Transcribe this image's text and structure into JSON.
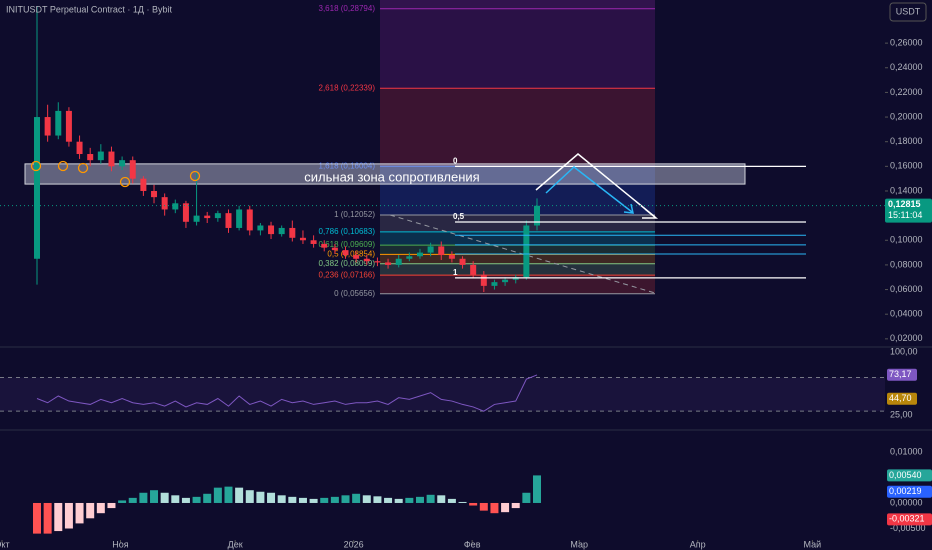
{
  "header": {
    "symbol": "INITUSDT Perpetual Contract · 1Д · Bybit",
    "currency_button": "USDT"
  },
  "chart_data": {
    "type": "candlestick",
    "ylim": [
      0.015,
      0.295
    ],
    "yticks": [
      {
        "value": 0.26,
        "label": "0,26000"
      },
      {
        "value": 0.24,
        "label": "0,24000"
      },
      {
        "value": 0.22,
        "label": "0,22000"
      },
      {
        "value": 0.2,
        "label": "0,20000"
      },
      {
        "value": 0.18,
        "label": "0,18000"
      },
      {
        "value": 0.16,
        "label": "0,16000"
      },
      {
        "value": 0.14,
        "label": "0,14000"
      },
      {
        "value": 0.12,
        "label": "0,12000"
      },
      {
        "value": 0.1,
        "label": "0,10000"
      },
      {
        "value": 0.08,
        "label": "0,08000"
      },
      {
        "value": 0.06,
        "label": "0,06000"
      },
      {
        "value": 0.04,
        "label": "0,04000"
      },
      {
        "value": 0.02,
        "label": "0,02000"
      }
    ],
    "xlim": [
      0,
      231
    ],
    "xticks": [
      {
        "value": 0,
        "label": "Окт"
      },
      {
        "value": 31,
        "label": "Ноя"
      },
      {
        "value": 61,
        "label": "Дек"
      },
      {
        "value": 92,
        "label": "2026"
      },
      {
        "value": 123,
        "label": "Фев"
      },
      {
        "value": 151,
        "label": "Мар"
      },
      {
        "value": 182,
        "label": "Апр"
      },
      {
        "value": 212,
        "label": "Май"
      }
    ],
    "up_color": "#089981",
    "down_color": "#f23645",
    "open": [
      0.085,
      0.2,
      0.185,
      0.205,
      0.18,
      0.17,
      0.165,
      0.172,
      0.16,
      0.165,
      0.15,
      0.14,
      0.135,
      0.125,
      0.13,
      0.115,
      0.12,
      0.118,
      0.122,
      0.11,
      0.125,
      0.108,
      0.112,
      0.105,
      0.11,
      0.102,
      0.1,
      0.097,
      0.094,
      0.092,
      0.088,
      0.085,
      0.083,
      0.082,
      0.08,
      0.085,
      0.087,
      0.09,
      0.095,
      0.088,
      0.085,
      0.08,
      0.072,
      0.063,
      0.066,
      0.068,
      0.07,
      0.112
    ],
    "high": [
      0.29,
      0.21,
      0.212,
      0.208,
      0.185,
      0.175,
      0.178,
      0.176,
      0.168,
      0.168,
      0.152,
      0.145,
      0.138,
      0.133,
      0.132,
      0.155,
      0.123,
      0.124,
      0.125,
      0.128,
      0.128,
      0.114,
      0.115,
      0.112,
      0.116,
      0.108,
      0.104,
      0.1,
      0.097,
      0.095,
      0.091,
      0.088,
      0.086,
      0.085,
      0.088,
      0.09,
      0.093,
      0.098,
      0.099,
      0.091,
      0.087,
      0.083,
      0.075,
      0.068,
      0.07,
      0.072,
      0.116,
      0.134
    ],
    "low": [
      0.064,
      0.18,
      0.182,
      0.176,
      0.166,
      0.16,
      0.162,
      0.156,
      0.157,
      0.146,
      0.136,
      0.13,
      0.12,
      0.122,
      0.11,
      0.112,
      0.114,
      0.115,
      0.106,
      0.108,
      0.104,
      0.104,
      0.101,
      0.103,
      0.099,
      0.097,
      0.094,
      0.091,
      0.089,
      0.085,
      0.082,
      0.08,
      0.079,
      0.077,
      0.078,
      0.083,
      0.085,
      0.087,
      0.084,
      0.082,
      0.077,
      0.069,
      0.058,
      0.06,
      0.063,
      0.065,
      0.068,
      0.108
    ],
    "close": [
      0.2,
      0.185,
      0.205,
      0.18,
      0.17,
      0.165,
      0.172,
      0.16,
      0.165,
      0.15,
      0.14,
      0.135,
      0.125,
      0.13,
      0.115,
      0.12,
      0.118,
      0.122,
      0.11,
      0.125,
      0.108,
      0.112,
      0.105,
      0.11,
      0.102,
      0.1,
      0.097,
      0.094,
      0.092,
      0.088,
      0.085,
      0.083,
      0.082,
      0.08,
      0.085,
      0.087,
      0.09,
      0.095,
      0.088,
      0.085,
      0.08,
      0.072,
      0.063,
      0.066,
      0.068,
      0.07,
      0.112,
      0.128
    ],
    "last_price": {
      "value": 0.12815,
      "label": "0,12815"
    },
    "countdown": "15:11:04",
    "resistance_zone": {
      "label": "сильная зона сопротивления",
      "top": 0.162,
      "bottom": 0.1456
    },
    "fib_left": [
      {
        "label": "3,618 (0,28794)",
        "price": 0.28794,
        "color": "#9c27b0"
      },
      {
        "label": "2,618 (0,22339)",
        "price": 0.22339,
        "color": "#f23645"
      },
      {
        "label": "1,618 (0,16004)",
        "price": 0.16004,
        "color": "#2962ff"
      },
      {
        "label": "1 (0,12052)",
        "price": 0.12052,
        "color": "#9598a1"
      },
      {
        "label": "0,786 (0,10683)",
        "price": 0.10683,
        "color": "#00bcd4"
      },
      {
        "label": "0,618 (0,09609)",
        "price": 0.09609,
        "color": "#4caf50"
      },
      {
        "label": "0,5 (0,08854)",
        "price": 0.08854,
        "color": "#ff9800"
      },
      {
        "label": "0,382 (0,08099)",
        "price": 0.08099,
        "color": "#81c784"
      },
      {
        "label": "0,236 (0,07166)",
        "price": 0.07166,
        "color": "#f44336"
      },
      {
        "label": "0 (0,05656)",
        "price": 0.05656,
        "color": "#9598a1"
      }
    ],
    "fib_right": [
      {
        "label": "0",
        "price": 0.16
      },
      {
        "label": "0,5",
        "price": 0.1148
      },
      {
        "price": 0.1041
      },
      {
        "price": 0.0963
      },
      {
        "price": 0.0889
      },
      {
        "label": "1",
        "price": 0.0695
      }
    ],
    "rsi": {
      "ylim": [
        10,
        105
      ],
      "yticks": [
        {
          "value": 100,
          "label": "100,00"
        },
        {
          "value": 25,
          "label": "25,00"
        }
      ],
      "levels": [
        70,
        30
      ],
      "color": "#7e57c2",
      "values": [
        45,
        40,
        48,
        42,
        40,
        38,
        44,
        40,
        45,
        40,
        38,
        40,
        36,
        42,
        35,
        40,
        38,
        45,
        36,
        48,
        38,
        42,
        36,
        44,
        40,
        42,
        38,
        40,
        42,
        38,
        40,
        40,
        42,
        38,
        46,
        44,
        48,
        52,
        44,
        42,
        38,
        35,
        30,
        38,
        40,
        42,
        68,
        73
      ],
      "last": {
        "value": 73.17,
        "label": "73,17"
      },
      "ma_last": {
        "value": 44.7,
        "label": "44,70"
      }
    },
    "macd": {
      "ylim": [
        -0.00725,
        0.0139
      ],
      "yticks": [
        {
          "value": 0.01,
          "label": "0,01000"
        },
        {
          "value": 0,
          "label": "0,00000"
        },
        {
          "value": -0.005,
          "label": "-0,00500"
        }
      ],
      "histogram": [
        -0.006,
        -0.006,
        -0.0055,
        -0.005,
        -0.004,
        -0.003,
        -0.002,
        -0.001,
        0.0005,
        0.001,
        0.002,
        0.0025,
        0.002,
        0.0015,
        0.001,
        0.0012,
        0.0018,
        0.003,
        0.0032,
        0.003,
        0.0025,
        0.0022,
        0.002,
        0.0015,
        0.0012,
        0.001,
        0.0008,
        0.001,
        0.0012,
        0.0015,
        0.0018,
        0.0015,
        0.0013,
        0.001,
        0.0008,
        0.001,
        0.0012,
        0.0016,
        0.0015,
        0.0008,
        0.0002,
        -0.0005,
        -0.0015,
        -0.002,
        -0.0018,
        -0.001,
        0.002,
        0.0054
      ],
      "hist_last": {
        "value": 0.0054,
        "label": "0,00540"
      },
      "macd_last": {
        "value": 0.00219,
        "label": "0,00219"
      },
      "signal_last": {
        "value": -0.00321,
        "label": "-0,00321"
      }
    }
  }
}
